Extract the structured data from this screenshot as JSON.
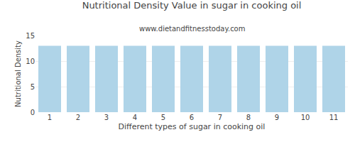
{
  "chart_data": {
    "type": "bar",
    "title": "Nutritional Density Value in sugar in cooking oil",
    "subtitle": "www.dietandfitnesstoday.com",
    "xlabel": "Different types of sugar in cooking oil",
    "ylabel": "Nutritional Density",
    "categories": [
      1,
      2,
      3,
      4,
      5,
      6,
      7,
      8,
      9,
      10,
      11
    ],
    "values": [
      13.0,
      13.0,
      13.0,
      13.0,
      13.0,
      13.0,
      13.0,
      13.0,
      13.0,
      13.0,
      13.0
    ],
    "color": "#afd4e8",
    "ylim": [
      0,
      15
    ],
    "yticks": [
      0,
      5,
      10,
      15
    ],
    "grid": true
  }
}
